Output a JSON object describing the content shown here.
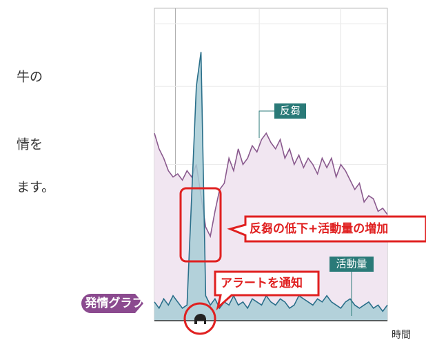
{
  "chart_data": {
    "type": "line",
    "side_texts": [
      "牛の",
      "情を",
      "ます。"
    ],
    "button": "発情グラフ",
    "xlabel": "時間",
    "annotations": [
      "反芻の低下+活動量の増加",
      "アラートを通知"
    ],
    "x": [
      0,
      2,
      4,
      6,
      8,
      10,
      12,
      14,
      16,
      18,
      20,
      22,
      24,
      26,
      28,
      30,
      32,
      34,
      36,
      38,
      40,
      42,
      44,
      46,
      48,
      50,
      52,
      54,
      56,
      58,
      60,
      62,
      64,
      66,
      68,
      70,
      72,
      74,
      76,
      78,
      80,
      82,
      84,
      86,
      88,
      90,
      92,
      94,
      96,
      98,
      100
    ],
    "series": [
      {
        "name": "反芻",
        "color": "#8a5a8e",
        "fill": "#f1e6f1",
        "values": [
          60,
          55,
          52,
          48,
          46,
          47,
          45,
          48,
          46,
          50,
          40,
          30,
          27,
          35,
          42,
          44,
          52,
          48,
          55,
          50,
          52,
          56,
          54,
          58,
          60,
          57,
          55,
          58,
          52,
          55,
          50,
          53,
          49,
          52,
          50,
          47,
          52,
          49,
          52,
          46,
          50,
          48,
          45,
          42,
          44,
          38,
          40,
          39,
          35,
          36,
          34
        ]
      },
      {
        "name": "活動量",
        "color": "#2a6f8a",
        "fill": "#a8cdd6",
        "values": [
          6,
          4,
          7,
          5,
          8,
          6,
          4,
          5,
          40,
          75,
          86,
          8,
          5,
          7,
          4,
          6,
          5,
          8,
          5,
          6,
          4,
          7,
          6,
          5,
          8,
          6,
          5,
          7,
          6,
          4,
          5,
          8,
          7,
          6,
          5,
          7,
          6,
          8,
          6,
          5,
          4,
          6,
          7,
          5,
          4,
          5,
          6,
          4,
          5,
          3,
          5
        ]
      }
    ],
    "xlim": [
      0,
      100
    ],
    "ylim": [
      0,
      100
    ],
    "xticks": [
      9,
      45,
      80
    ],
    "yticks": [
      25,
      50,
      75,
      95
    ],
    "grid": true
  }
}
